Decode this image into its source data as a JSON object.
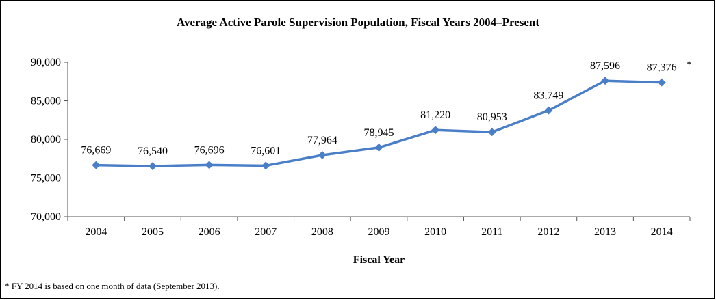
{
  "chart_data": {
    "type": "line",
    "title": "Average Active Parole Supervision Population, Fiscal Years 2004–Present",
    "xlabel": "Fiscal Year",
    "ylabel": "",
    "categories": [
      "2004",
      "2005",
      "2006",
      "2007",
      "2008",
      "2009",
      "2010",
      "2011",
      "2012",
      "2013",
      "2014"
    ],
    "series": [
      {
        "values": [
          76669,
          76540,
          76696,
          76601,
          77964,
          78945,
          81220,
          80953,
          83749,
          87596,
          87376
        ],
        "data_labels": [
          "76,669",
          "76,540",
          "76,696",
          "76,601",
          "77,964",
          "78,945",
          "81,220",
          "80,953",
          "83,749",
          "87,596",
          "87,376"
        ],
        "color": "#4a7fc8",
        "marker": "diamond"
      }
    ],
    "ylim": [
      70000,
      90000
    ],
    "yticks": [
      70000,
      75000,
      80000,
      85000,
      90000
    ],
    "ytick_labels": [
      "70,000",
      "75,000",
      "80,000",
      "85,000",
      "90,000"
    ],
    "grid": false,
    "legend": "none",
    "annotations": [
      {
        "category": "2014",
        "text": "*"
      }
    ],
    "footnote": "* FY 2014 is based on one month of data (September 2013)."
  }
}
